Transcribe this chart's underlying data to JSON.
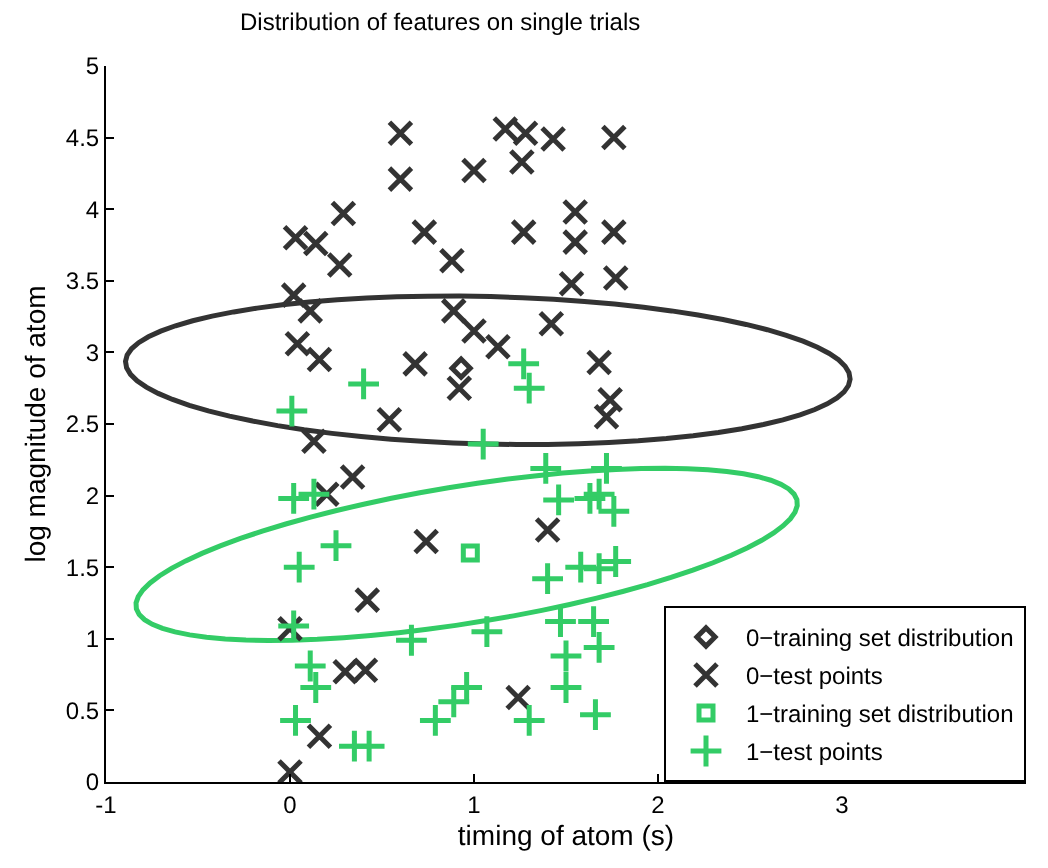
{
  "chart_data": {
    "type": "scatter",
    "title": "Distribution of features on single trials",
    "xlabel": "timing of atom (s)",
    "ylabel": "log magnitude of atom",
    "xlim": [
      -1,
      4
    ],
    "xticks": [
      -1,
      0,
      1,
      2,
      3
    ],
    "ylim": [
      0,
      5
    ],
    "yticks": [
      0,
      0.5,
      1,
      1.5,
      2,
      2.5,
      3,
      3.5,
      4,
      4.5,
      5
    ],
    "grid": false,
    "legend": "bottom right",
    "series": [
      {
        "name": "0−training set distribution",
        "color": "#333333",
        "marker": "diamond",
        "x": [
          0.93
        ],
        "values": [
          2.89
        ]
      },
      {
        "name": "0−test points",
        "color": "#333333",
        "marker": "cross",
        "x": [
          0.6,
          0.6,
          0.29,
          0.03,
          0.14,
          0.27,
          0.73,
          0.88,
          1.0,
          1.17,
          1.28,
          1.43,
          1.76,
          1.26,
          1.27,
          1.55,
          1.55,
          1.76,
          1.53,
          1.77,
          0.02,
          0.11,
          0.89,
          1.0,
          1.13,
          1.42,
          0.04,
          0.16,
          0.68,
          0.92,
          1.68,
          1.74,
          0.54,
          0.13,
          1.72,
          0.34,
          0.2,
          0.74,
          1.4,
          0.42,
          0.0,
          0.3,
          0.41,
          1.24,
          0.16,
          0.0
        ],
        "values": [
          4.53,
          4.21,
          3.97,
          3.8,
          3.76,
          3.61,
          3.84,
          3.64,
          4.27,
          4.56,
          4.53,
          4.49,
          4.5,
          4.33,
          3.84,
          3.98,
          3.77,
          3.84,
          3.48,
          3.52,
          3.4,
          3.29,
          3.29,
          3.15,
          3.04,
          3.2,
          3.06,
          2.95,
          2.92,
          2.75,
          2.93,
          2.67,
          2.53,
          2.38,
          2.55,
          2.13,
          2.01,
          1.68,
          1.76,
          1.27,
          1.07,
          0.77,
          0.78,
          0.59,
          0.32,
          0.07
        ]
      },
      {
        "name": "1−training set distribution",
        "color": "#33cc66",
        "marker": "square",
        "x": [
          0.98
        ],
        "values": [
          1.6
        ]
      },
      {
        "name": "1−test points",
        "color": "#33cc66",
        "marker": "plus",
        "x": [
          0.4,
          0.01,
          1.27,
          1.3,
          1.05,
          1.39,
          1.72,
          0.02,
          0.13,
          1.46,
          1.63,
          1.76,
          1.68,
          0.25,
          0.05,
          1.4,
          1.58,
          1.68,
          1.77,
          0.02,
          0.66,
          1.07,
          1.47,
          1.65,
          1.5,
          1.68,
          0.11,
          0.14,
          0.96,
          0.89,
          0.79,
          1.3,
          1.5,
          1.66,
          0.03,
          0.35,
          0.43
        ],
        "values": [
          2.78,
          2.59,
          2.92,
          2.75,
          2.36,
          2.19,
          2.19,
          1.98,
          2.01,
          1.97,
          1.98,
          1.89,
          2.01,
          1.65,
          1.5,
          1.42,
          1.5,
          1.49,
          1.54,
          1.09,
          0.99,
          1.05,
          1.12,
          1.12,
          0.88,
          0.94,
          0.81,
          0.66,
          0.66,
          0.56,
          0.43,
          0.43,
          0.66,
          0.47,
          0.43,
          0.25,
          0.25
        ]
      }
    ]
  }
}
